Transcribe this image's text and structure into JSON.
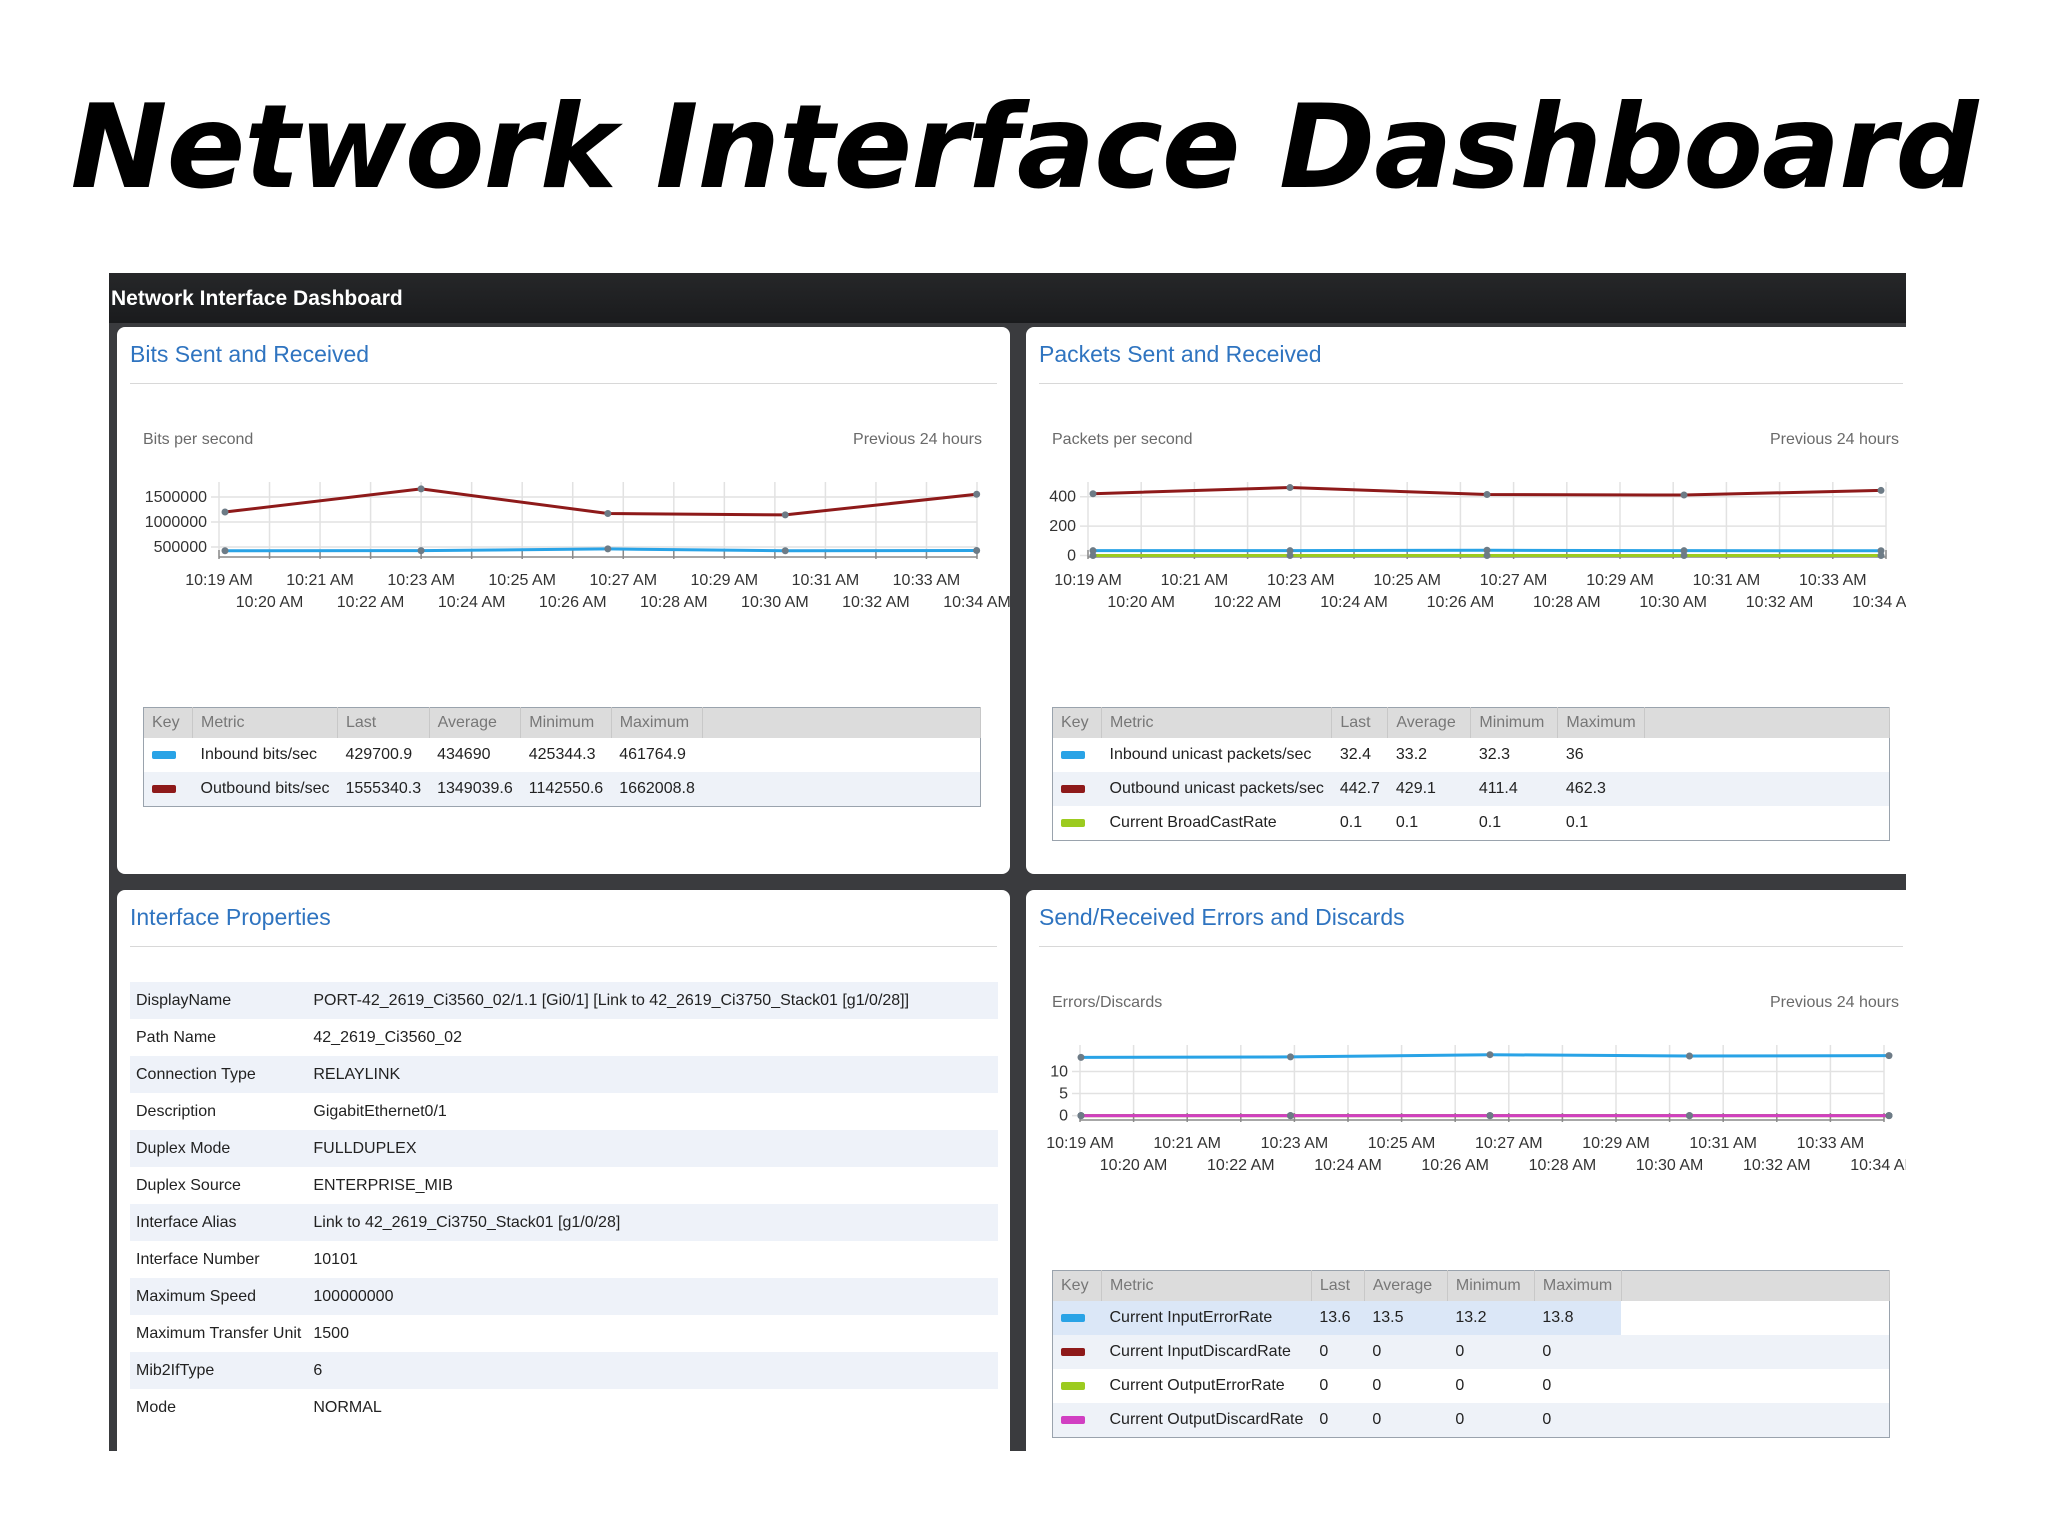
{
  "slide_title": "Network Interface Dashboard",
  "app": {
    "title": "Network Interface Dashboard"
  },
  "panels": {
    "bits": {
      "title": "Bits Sent and Received",
      "ylabel": "Bits per second",
      "range": "Previous 24 hours",
      "table": {
        "headers": [
          "Key",
          "Metric",
          "Last",
          "Average",
          "Minimum",
          "Maximum"
        ],
        "rows": [
          {
            "metric": "Inbound bits/sec",
            "last": "429700.9",
            "average": "434690",
            "minimum": "425344.3",
            "maximum": "461764.9"
          },
          {
            "metric": "Outbound bits/sec",
            "last": "1555340.3",
            "average": "1349039.6",
            "minimum": "1142550.6",
            "maximum": "1662008.8"
          }
        ]
      }
    },
    "packets": {
      "title": "Packets Sent and Received",
      "ylabel": "Packets per second",
      "range": "Previous 24 hours",
      "table": {
        "headers": [
          "Key",
          "Metric",
          "Last",
          "Average",
          "Minimum",
          "Maximum"
        ],
        "rows": [
          {
            "metric": "Inbound unicast packets/sec",
            "last": "32.4",
            "average": "33.2",
            "minimum": "32.3",
            "maximum": "36"
          },
          {
            "metric": "Outbound unicast packets/sec",
            "last": "442.7",
            "average": "429.1",
            "minimum": "411.4",
            "maximum": "462.3"
          },
          {
            "metric": "Current BroadCastRate",
            "last": "0.1",
            "average": "0.1",
            "minimum": "0.1",
            "maximum": "0.1"
          }
        ]
      }
    },
    "properties": {
      "title": "Interface Properties",
      "rows": [
        {
          "key": "DisplayName",
          "value": "PORT-42_2619_Ci3560_02/1.1 [Gi0/1] [Link to 42_2619_Ci3750_Stack01 [g1/0/28]]"
        },
        {
          "key": "Path Name",
          "value": "42_2619_Ci3560_02"
        },
        {
          "key": "Connection Type",
          "value": "RELAYLINK"
        },
        {
          "key": "Description",
          "value": "GigabitEthernet0/1"
        },
        {
          "key": "Duplex Mode",
          "value": "FULLDUPLEX"
        },
        {
          "key": "Duplex Source",
          "value": "ENTERPRISE_MIB"
        },
        {
          "key": "Interface Alias",
          "value": "Link to 42_2619_Ci3750_Stack01 [g1/0/28]"
        },
        {
          "key": "Interface Number",
          "value": "10101"
        },
        {
          "key": "Maximum Speed",
          "value": "100000000"
        },
        {
          "key": "Maximum Transfer Unit",
          "value": "1500"
        },
        {
          "key": "Mib2IfType",
          "value": "6"
        },
        {
          "key": "Mode",
          "value": "NORMAL"
        }
      ]
    },
    "errors": {
      "title": "Send/Received Errors and Discards",
      "ylabel": "Errors/Discards",
      "range": "Previous 24 hours",
      "table": {
        "headers": [
          "Key",
          "Metric",
          "Last",
          "Average",
          "Minimum",
          "Maximum"
        ],
        "rows": [
          {
            "metric": "Current InputErrorRate",
            "last": "13.6",
            "average": "13.5",
            "minimum": "13.2",
            "maximum": "13.8"
          },
          {
            "metric": "Current InputDiscardRate",
            "last": "0",
            "average": "0",
            "minimum": "0",
            "maximum": "0"
          },
          {
            "metric": "Current OutputErrorRate",
            "last": "0",
            "average": "0",
            "minimum": "0",
            "maximum": "0"
          },
          {
            "metric": "Current OutputDiscardRate",
            "last": "0",
            "average": "0",
            "minimum": "0",
            "maximum": "0"
          }
        ]
      }
    }
  },
  "time_ticks": [
    "10:19 AM",
    "10:20 AM",
    "10:21 AM",
    "10:22 AM",
    "10:23 AM",
    "10:24 AM",
    "10:25 AM",
    "10:26 AM",
    "10:27 AM",
    "10:28 AM",
    "10:29 AM",
    "10:30 AM",
    "10:31 AM",
    "10:32 AM",
    "10:33 AM",
    "10:34 AM"
  ],
  "chart_data": [
    {
      "type": "line",
      "title": "Bits Sent and Received",
      "ylabel": "Bits per second",
      "ylim": [
        300000,
        1800000
      ],
      "yticks": [
        500000,
        1000000,
        1500000
      ],
      "grid": true,
      "series": [
        {
          "name": "Inbound bits/sec",
          "color": "#29a3e6",
          "x": [
            0,
            4.2,
            8.2,
            12.0,
            16.1
          ],
          "values": [
            425000,
            427000,
            461764.9,
            425344.3,
            429700.9
          ]
        },
        {
          "name": "Outbound bits/sec",
          "color": "#8e1a1a",
          "x": [
            0,
            4.2,
            8.2,
            12.0,
            16.1
          ],
          "values": [
            1200000,
            1662008.8,
            1170000,
            1142550.6,
            1555340.3
          ]
        }
      ]
    },
    {
      "type": "line",
      "title": "Packets Sent and Received",
      "ylabel": "Packets per second",
      "ylim": [
        -10,
        500
      ],
      "yticks": [
        0,
        200,
        400
      ],
      "grid": true,
      "series": [
        {
          "name": "Inbound unicast packets/sec",
          "color": "#29a3e6",
          "x": [
            0,
            4.0,
            8.0,
            12.0,
            16.0
          ],
          "values": [
            33,
            33,
            36,
            33,
            32.4
          ]
        },
        {
          "name": "Outbound unicast packets/sec",
          "color": "#8e1a1a",
          "x": [
            0,
            4.0,
            8.0,
            12.0,
            16.0
          ],
          "values": [
            420,
            462.3,
            415,
            411.4,
            442.7
          ]
        },
        {
          "name": "Current BroadCastRate",
          "color": "#9ccb1f",
          "x": [
            0,
            4.0,
            8.0,
            12.0,
            16.0
          ],
          "values": [
            0.1,
            0.1,
            0.1,
            0.1,
            0.1
          ]
        }
      ]
    },
    {
      "type": "line",
      "title": "Send/Received Errors and Discards",
      "ylabel": "Errors/Discards",
      "ylim": [
        -1,
        16
      ],
      "yticks": [
        0,
        5,
        10
      ],
      "grid": true,
      "series": [
        {
          "name": "Current InputErrorRate",
          "color": "#29a3e6",
          "x": [
            0,
            4.2,
            8.2,
            12.2,
            16.2
          ],
          "values": [
            13.2,
            13.3,
            13.8,
            13.5,
            13.6
          ]
        },
        {
          "name": "Current InputDiscardRate",
          "color": "#8e1a1a",
          "x": [
            0,
            4.2,
            8.2,
            12.2,
            16.2
          ],
          "values": [
            0,
            0,
            0,
            0,
            0
          ]
        },
        {
          "name": "Current OutputErrorRate",
          "color": "#9ccb1f",
          "x": [
            0,
            4.2,
            8.2,
            12.2,
            16.2
          ],
          "values": [
            0,
            0,
            0,
            0,
            0
          ]
        },
        {
          "name": "Current OutputDiscardRate",
          "color": "#d13fc2",
          "x": [
            0,
            4.2,
            8.2,
            12.2,
            16.2
          ],
          "values": [
            0,
            0,
            0,
            0,
            0
          ]
        }
      ]
    }
  ]
}
